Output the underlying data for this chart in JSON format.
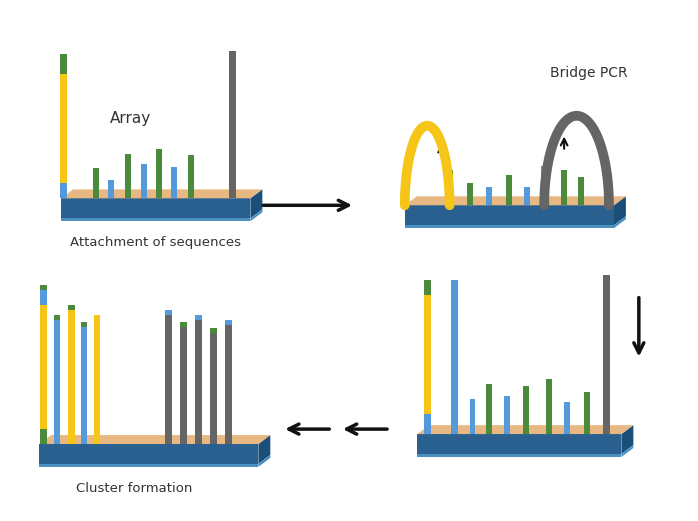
{
  "background_color": "#ffffff",
  "labels": {
    "array": "Array",
    "attachment": "Attachment of sequences",
    "bridge_pcr": "Bridge PCR",
    "cluster": "Cluster formation"
  },
  "colors": {
    "platform_top": "#E8B882",
    "platform_side_front": "#2A6090",
    "platform_side_dark": "#1A4F7A",
    "platform_highlight": "#4A90C0",
    "yellow": "#F5C518",
    "blue": "#5599DD",
    "green": "#4A8A3A",
    "gray": "#656565",
    "arrow": "#111111"
  },
  "figsize": [
    6.98,
    5.21
  ],
  "dpi": 100
}
